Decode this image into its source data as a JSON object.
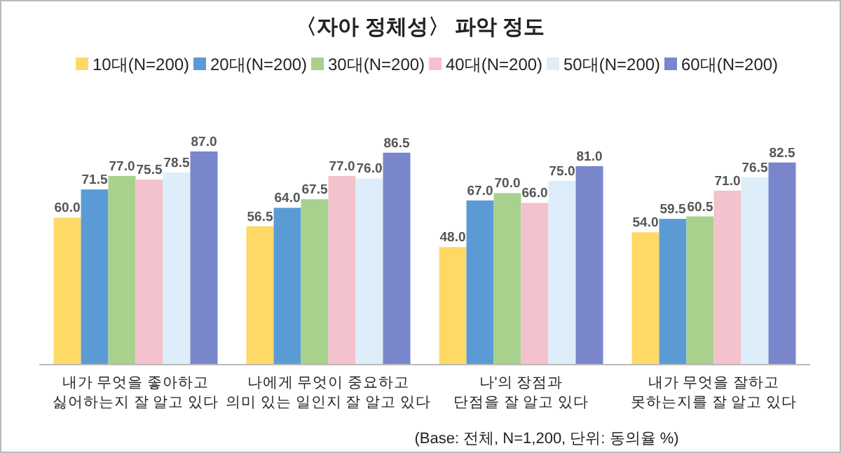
{
  "chart_data": {
    "type": "bar",
    "title": "〈자아 정체성〉 파악 정도",
    "categories": [
      "내가 무엇을 좋아하고\n싫어하는지 잘 알고 있다",
      "나에게 무엇이 중요하고\n의미 있는 일인지 잘 알고 있다",
      "나'의 장점과\n단점을 잘 알고 있다",
      "내가 무엇을 잘하고\n못하는지를 잘 알고 있다"
    ],
    "series": [
      {
        "name": "10대(N=200)",
        "color": "#ffd966",
        "values": [
          60.0,
          56.5,
          48.0,
          54.0
        ],
        "value_labels": [
          "60.0",
          "56.5",
          "48.0",
          "54.0"
        ]
      },
      {
        "name": "20대(N=200)",
        "color": "#5b9bd5",
        "values": [
          71.5,
          64.0,
          67.0,
          59.5
        ],
        "value_labels": [
          "71.5",
          "64.0",
          "67.0",
          "59.5"
        ]
      },
      {
        "name": "30대(N=200)",
        "color": "#a9d18e",
        "values": [
          77.0,
          67.5,
          70.0,
          60.5
        ],
        "value_labels": [
          "77.0",
          "67.5",
          "70.0",
          "60.5"
        ]
      },
      {
        "name": "40대(N=200)",
        "color": "#f4c2cc",
        "values": [
          75.5,
          77.0,
          66.0,
          71.0
        ],
        "value_labels": [
          "75.5",
          "77.0",
          "66.0",
          "71.0"
        ]
      },
      {
        "name": "50대(N=200)",
        "color": "#ddeefa",
        "values": [
          78.5,
          76.0,
          75.0,
          76.5
        ],
        "value_labels": [
          "78.5",
          "76.0",
          "75.0",
          "76.5"
        ]
      },
      {
        "name": "60대(N=200)",
        "color": "#7986cb",
        "values": [
          87.0,
          86.5,
          81.0,
          82.5
        ],
        "value_labels": [
          "87.0",
          "86.5",
          "81.0",
          "82.5"
        ]
      }
    ],
    "legend": "top",
    "annotations": [
      "(Base: 전체, N=1,200, 단위: 동의율 %)"
    ]
  }
}
